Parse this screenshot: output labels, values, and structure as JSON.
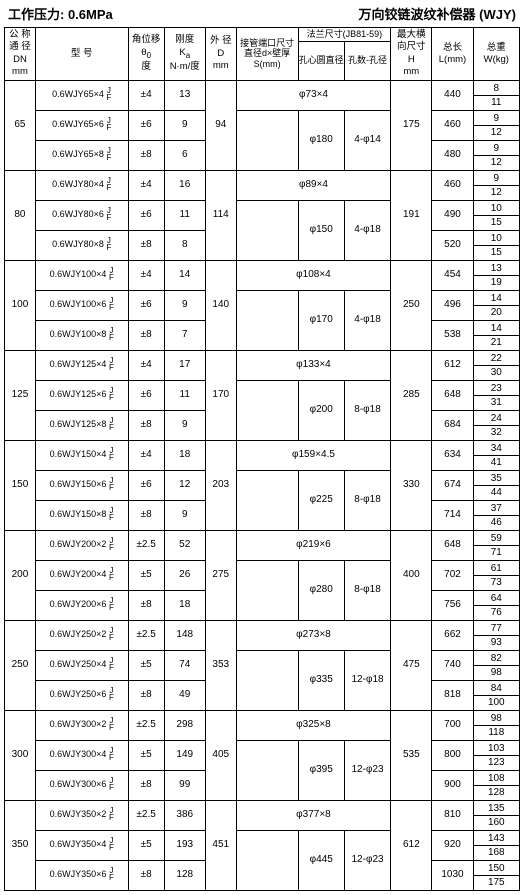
{
  "header_left": "工作压力: 0.6MPa",
  "header_right": "万向铰链波纹补偿器 (WJY)",
  "cols": {
    "c1a": "公 称",
    "c1b": "通 径",
    "c1c": "DN",
    "c1d": "mm",
    "c2": "型 号",
    "c3a": "角位移",
    "c3b": "θ",
    "c3c": "度",
    "c4a": "刚度",
    "c4b": "K",
    "c4c": "N·m/度",
    "c5a": "外 径",
    "c5b": "D",
    "c5c": "mm",
    "c6": "接管端口尺寸直径d×壁厚S(mm)",
    "c7": "法兰尺寸(JB81-59)",
    "c7a": "孔心圆直径",
    "c7b": "孔数-孔径",
    "c8a": "最大横",
    "c8b": "向尺寸",
    "c8c": "H",
    "c8d": "mm",
    "c9a": "总长",
    "c9b": "L(mm)",
    "c10a": "总重",
    "c10b": "W(kg)"
  },
  "groups": [
    {
      "dn": "65",
      "D": "94",
      "pipe": "φ73×4",
      "fl_d": "φ180",
      "fl_h": "4-φ14",
      "H": "175",
      "rows": [
        {
          "m": "0.6WJY65×4",
          "a": "±4",
          "k": "13",
          "L": "440",
          "w": [
            "8",
            "11"
          ]
        },
        {
          "m": "0.6WJY65×6",
          "a": "±6",
          "k": "9",
          "L": "460",
          "w": [
            "9",
            "12"
          ]
        },
        {
          "m": "0.6WJY65×8",
          "a": "±8",
          "k": "6",
          "L": "480",
          "w": [
            "9",
            "12"
          ]
        }
      ]
    },
    {
      "dn": "80",
      "D": "114",
      "pipe": "φ89×4",
      "fl_d": "φ150",
      "fl_h": "4-φ18",
      "H": "191",
      "rows": [
        {
          "m": "0.6WJY80×4",
          "a": "±4",
          "k": "16",
          "L": "460",
          "w": [
            "9",
            "12"
          ]
        },
        {
          "m": "0.6WJY80×6",
          "a": "±6",
          "k": "11",
          "L": "490",
          "w": [
            "10",
            "15"
          ]
        },
        {
          "m": "0.6WJY80×8",
          "a": "±8",
          "k": "8",
          "L": "520",
          "w": [
            "10",
            "15"
          ]
        }
      ]
    },
    {
      "dn": "100",
      "D": "140",
      "pipe": "φ108×4",
      "fl_d": "φ170",
      "fl_h": "4-φ18",
      "H": "250",
      "rows": [
        {
          "m": "0.6WJY100×4",
          "a": "±4",
          "k": "14",
          "L": "454",
          "w": [
            "13",
            "19"
          ]
        },
        {
          "m": "0.6WJY100×6",
          "a": "±6",
          "k": "9",
          "L": "496",
          "w": [
            "14",
            "20"
          ]
        },
        {
          "m": "0.6WJY100×8",
          "a": "±8",
          "k": "7",
          "L": "538",
          "w": [
            "14",
            "21"
          ]
        }
      ]
    },
    {
      "dn": "125",
      "D": "170",
      "pipe": "φ133×4",
      "fl_d": "φ200",
      "fl_h": "8-φ18",
      "H": "285",
      "rows": [
        {
          "m": "0.6WJY125×4",
          "a": "±4",
          "k": "17",
          "L": "612",
          "w": [
            "22",
            "30"
          ]
        },
        {
          "m": "0.6WJY125×6",
          "a": "±6",
          "k": "11",
          "L": "648",
          "w": [
            "23",
            "31"
          ]
        },
        {
          "m": "0.6WJY125×8",
          "a": "±8",
          "k": "9",
          "L": "684",
          "w": [
            "24",
            "32"
          ]
        }
      ]
    },
    {
      "dn": "150",
      "D": "203",
      "pipe": "φ159×4.5",
      "fl_d": "φ225",
      "fl_h": "8-φ18",
      "H": "330",
      "rows": [
        {
          "m": "0.6WJY150×4",
          "a": "±4",
          "k": "18",
          "L": "634",
          "w": [
            "34",
            "41"
          ]
        },
        {
          "m": "0.6WJY150×6",
          "a": "±6",
          "k": "12",
          "L": "674",
          "w": [
            "35",
            "44"
          ]
        },
        {
          "m": "0.6WJY150×8",
          "a": "±8",
          "k": "9",
          "L": "714",
          "w": [
            "37",
            "46"
          ]
        }
      ]
    },
    {
      "dn": "200",
      "D": "275",
      "pipe": "φ219×6",
      "fl_d": "φ280",
      "fl_h": "8-φ18",
      "H": "400",
      "rows": [
        {
          "m": "0.6WJY200×2",
          "a": "±2.5",
          "k": "52",
          "L": "648",
          "w": [
            "59",
            "71"
          ]
        },
        {
          "m": "0.6WJY200×4",
          "a": "±5",
          "k": "26",
          "L": "702",
          "w": [
            "61",
            "73"
          ]
        },
        {
          "m": "0.6WJY200×6",
          "a": "±8",
          "k": "18",
          "L": "756",
          "w": [
            "64",
            "76"
          ]
        }
      ]
    },
    {
      "dn": "250",
      "D": "353",
      "pipe": "φ273×8",
      "fl_d": "φ335",
      "fl_h": "12-φ18",
      "H": "475",
      "rows": [
        {
          "m": "0.6WJY250×2",
          "a": "±2.5",
          "k": "148",
          "L": "662",
          "w": [
            "77",
            "93"
          ]
        },
        {
          "m": "0.6WJY250×4",
          "a": "±5",
          "k": "74",
          "L": "740",
          "w": [
            "82",
            "98"
          ]
        },
        {
          "m": "0.6WJY250×6",
          "a": "±8",
          "k": "49",
          "L": "818",
          "w": [
            "84",
            "100"
          ]
        }
      ]
    },
    {
      "dn": "300",
      "D": "405",
      "pipe": "φ325×8",
      "fl_d": "φ395",
      "fl_h": "12-φ23",
      "H": "535",
      "rows": [
        {
          "m": "0.6WJY300×2",
          "a": "±2.5",
          "k": "298",
          "L": "700",
          "w": [
            "98",
            "118"
          ]
        },
        {
          "m": "0.6WJY300×4",
          "a": "±5",
          "k": "149",
          "L": "800",
          "w": [
            "103",
            "123"
          ]
        },
        {
          "m": "0.6WJY300×6",
          "a": "±8",
          "k": "99",
          "L": "900",
          "w": [
            "108",
            "128"
          ]
        }
      ]
    },
    {
      "dn": "350",
      "D": "451",
      "pipe": "φ377×8",
      "fl_d": "φ445",
      "fl_h": "12-φ23",
      "H": "612",
      "rows": [
        {
          "m": "0.6WJY350×2",
          "a": "±2.5",
          "k": "386",
          "L": "810",
          "w": [
            "135",
            "160"
          ]
        },
        {
          "m": "0.6WJY350×4",
          "a": "±5",
          "k": "193",
          "L": "920",
          "w": [
            "143",
            "168"
          ]
        },
        {
          "m": "0.6WJY350×6",
          "a": "±8",
          "k": "128",
          "L": "1030",
          "w": [
            "150",
            "175"
          ]
        }
      ]
    }
  ]
}
